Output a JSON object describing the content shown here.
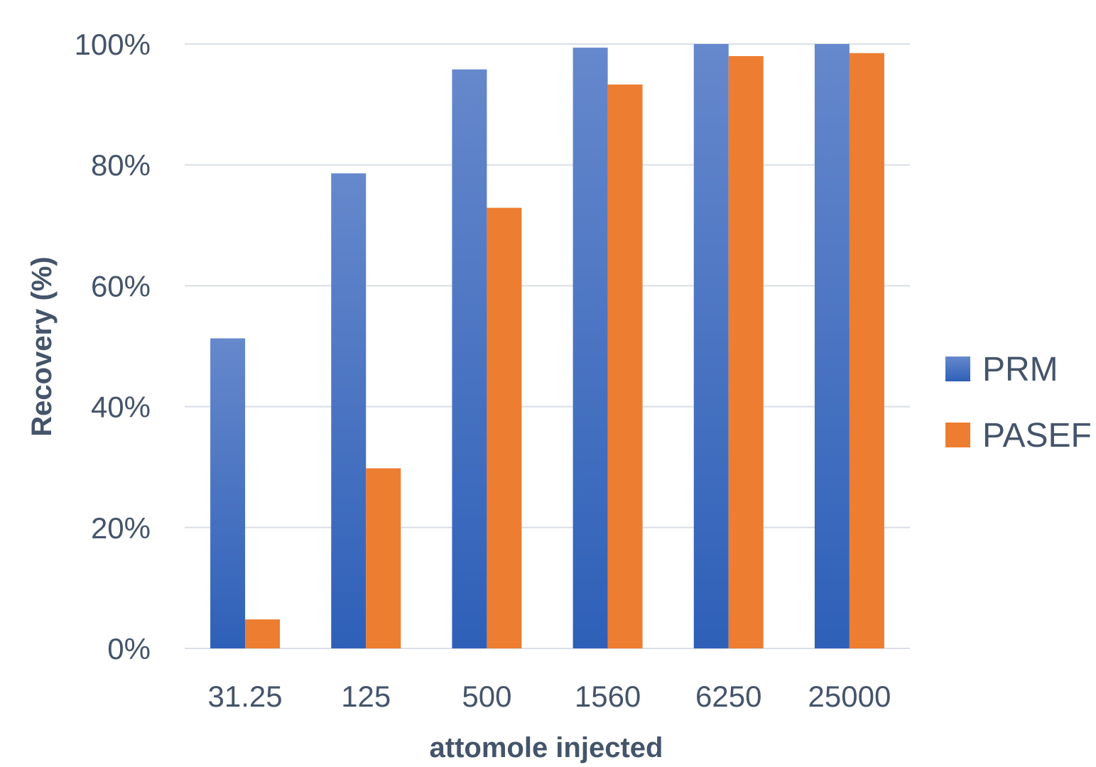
{
  "chart_data": {
    "type": "bar",
    "title": "",
    "xlabel": "attomole injected",
    "ylabel": "Recovery (%)",
    "categories": [
      "31.25",
      "125",
      "500",
      "1560",
      "6250",
      "25000"
    ],
    "series": [
      {
        "name": "PRM",
        "values": [
          51.3,
          78.6,
          95.8,
          99.4,
          100,
          100
        ],
        "color": "#4472c4"
      },
      {
        "name": "PASEF",
        "values": [
          4.8,
          29.8,
          72.9,
          93.3,
          98.0,
          98.5
        ],
        "color": "#ed7d31"
      }
    ],
    "ylim": [
      0,
      100
    ],
    "yticks": [
      "0%",
      "20%",
      "40%",
      "60%",
      "80%",
      "100%"
    ],
    "ytick_values": [
      0,
      20,
      40,
      60,
      80,
      100
    ],
    "grid": true,
    "legend_position": "right"
  }
}
